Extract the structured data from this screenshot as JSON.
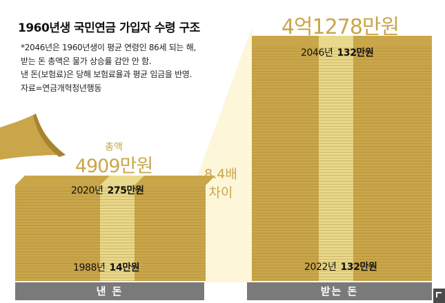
{
  "title": "1960년생 국민연금 가입자 수령 구조",
  "notes": [
    "*2046년은 1960년생이 평균 연령인 86세 되는 해,",
    " 받는 돈 총액은 물가 상승률 감안 안 함.",
    " 낸 돈(보험료)은 당해 보험료율과 평균 임금을 반영.",
    " 자료=연금개혁청년행동"
  ],
  "paid": {
    "total_label": "총액",
    "total": "4909만원",
    "top_year": "2020년",
    "top_amount": "275만원",
    "bottom_year": "1988년",
    "bottom_amount": "14만원",
    "caption": "낸 돈",
    "total_manwon": 4909,
    "top_manwon": 275,
    "bottom_manwon": 14
  },
  "received": {
    "total": "4억1278만원",
    "top_year": "2046년",
    "top_amount": "132만원",
    "bottom_year": "2022년",
    "bottom_amount": "132만원",
    "caption": "받는 돈",
    "total_manwon": 41278,
    "monthly_manwon": 132
  },
  "difference": {
    "line1": "8.4배",
    "line2": "차이",
    "ratio": 8.4
  },
  "colors": {
    "stack_main": "#c9a64a",
    "stack_dark": "#a8842e",
    "stack_light": "#e9d98c",
    "spotlight": "#fdf6d9",
    "accent_text": "#c9a64a",
    "footbar": "#7a7a7a"
  },
  "icons": {
    "corner": "corner-bracket-icon"
  }
}
